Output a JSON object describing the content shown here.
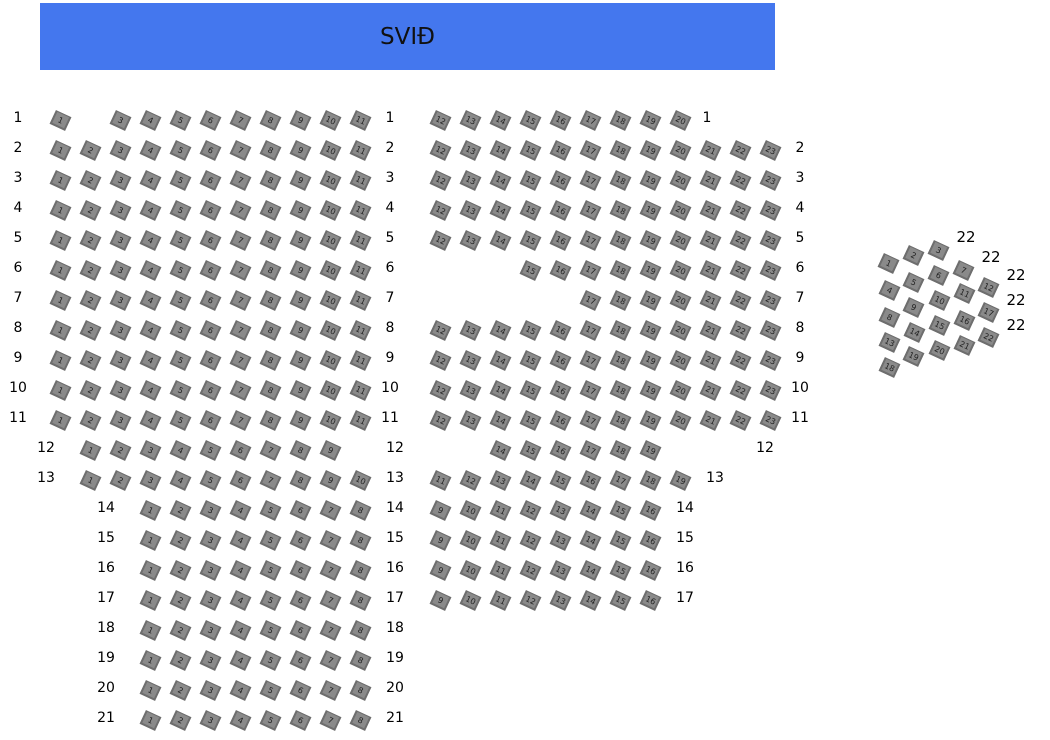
{
  "stage": {
    "label": "SVIÐ"
  },
  "left_section": {
    "rows": [
      {
        "label": "1",
        "seats": [
          1,
          3,
          4,
          5,
          6,
          7,
          8,
          9,
          10,
          11
        ]
      },
      {
        "label": "2",
        "seats": [
          1,
          2,
          3,
          4,
          5,
          6,
          7,
          8,
          9,
          10,
          11
        ]
      },
      {
        "label": "3",
        "seats": [
          1,
          2,
          3,
          4,
          5,
          6,
          7,
          8,
          9,
          10,
          11
        ]
      },
      {
        "label": "4",
        "seats": [
          1,
          2,
          3,
          4,
          5,
          6,
          7,
          8,
          9,
          10,
          11
        ]
      },
      {
        "label": "5",
        "seats": [
          1,
          2,
          3,
          4,
          5,
          6,
          7,
          8,
          9,
          10,
          11
        ]
      },
      {
        "label": "6",
        "seats": [
          1,
          2,
          3,
          4,
          5,
          6,
          7,
          8,
          9,
          10,
          11
        ]
      },
      {
        "label": "7",
        "seats": [
          1,
          2,
          3,
          4,
          5,
          6,
          7,
          8,
          9,
          10,
          11
        ]
      },
      {
        "label": "8",
        "seats": [
          1,
          2,
          3,
          4,
          5,
          6,
          7,
          8,
          9,
          10,
          11
        ]
      },
      {
        "label": "9",
        "seats": [
          1,
          2,
          3,
          4,
          5,
          6,
          7,
          8,
          9,
          10,
          11
        ]
      },
      {
        "label": "10",
        "seats": [
          1,
          2,
          3,
          4,
          5,
          6,
          7,
          8,
          9,
          10,
          11
        ]
      },
      {
        "label": "11",
        "seats": [
          1,
          2,
          3,
          4,
          5,
          6,
          7,
          8,
          9,
          10,
          11
        ]
      },
      {
        "label": "12",
        "seats": [
          1,
          2,
          3,
          4,
          5,
          6,
          7,
          8,
          9
        ]
      },
      {
        "label": "13",
        "seats": [
          1,
          2,
          3,
          4,
          5,
          6,
          7,
          8,
          9,
          10
        ]
      },
      {
        "label": "14",
        "seats": [
          1,
          2,
          3,
          4,
          5,
          6,
          7,
          8
        ]
      },
      {
        "label": "15",
        "seats": [
          1,
          2,
          3,
          4,
          5,
          6,
          7,
          8
        ]
      },
      {
        "label": "16",
        "seats": [
          1,
          2,
          3,
          4,
          5,
          6,
          7,
          8
        ]
      },
      {
        "label": "17",
        "seats": [
          1,
          2,
          3,
          4,
          5,
          6,
          7,
          8
        ]
      },
      {
        "label": "18",
        "seats": [
          1,
          2,
          3,
          4,
          5,
          6,
          7,
          8
        ]
      },
      {
        "label": "19",
        "seats": [
          1,
          2,
          3,
          4,
          5,
          6,
          7,
          8
        ]
      },
      {
        "label": "20",
        "seats": [
          1,
          2,
          3,
          4,
          5,
          6,
          7,
          8
        ]
      },
      {
        "label": "21",
        "seats": [
          1,
          2,
          3,
          4,
          5,
          6,
          7,
          8
        ]
      }
    ]
  },
  "right_section": {
    "rows": [
      {
        "label": "1",
        "seats": [
          12,
          13,
          14,
          15,
          16,
          17,
          18,
          19,
          20
        ]
      },
      {
        "label": "2",
        "seats": [
          12,
          13,
          14,
          15,
          16,
          17,
          18,
          19,
          20,
          21,
          22,
          23
        ]
      },
      {
        "label": "3",
        "seats": [
          12,
          13,
          14,
          15,
          16,
          17,
          18,
          19,
          20,
          21,
          22,
          23
        ]
      },
      {
        "label": "4",
        "seats": [
          12,
          13,
          14,
          15,
          16,
          17,
          18,
          19,
          20,
          21,
          22,
          23
        ]
      },
      {
        "label": "5",
        "seats": [
          12,
          13,
          14,
          15,
          16,
          17,
          18,
          19,
          20,
          21,
          22,
          23
        ]
      },
      {
        "label": "6",
        "seats": [
          15,
          16,
          17,
          18,
          19,
          20,
          21,
          22,
          23
        ]
      },
      {
        "label": "7",
        "seats": [
          17,
          18,
          19,
          20,
          21,
          22,
          23
        ]
      },
      {
        "label": "8",
        "seats": [
          12,
          13,
          14,
          15,
          16,
          17,
          18,
          19,
          20,
          21,
          22,
          23
        ]
      },
      {
        "label": "9",
        "seats": [
          12,
          13,
          14,
          15,
          16,
          17,
          18,
          19,
          20,
          21,
          22,
          23
        ]
      },
      {
        "label": "10",
        "seats": [
          12,
          13,
          14,
          15,
          16,
          17,
          18,
          19,
          20,
          21,
          22,
          23
        ]
      },
      {
        "label": "11",
        "seats": [
          12,
          13,
          14,
          15,
          16,
          17,
          18,
          19,
          20,
          21,
          22,
          23
        ]
      },
      {
        "label": "12",
        "seats": [
          14,
          15,
          16,
          17,
          18,
          19
        ]
      },
      {
        "label": "13",
        "seats": [
          11,
          12,
          13,
          14,
          15,
          16,
          17,
          18,
          19
        ]
      },
      {
        "label": "14",
        "seats": [
          9,
          10,
          11,
          12,
          13,
          14,
          15,
          16
        ]
      },
      {
        "label": "15",
        "seats": [
          9,
          10,
          11,
          12,
          13,
          14,
          15,
          16
        ]
      },
      {
        "label": "16",
        "seats": [
          9,
          10,
          11,
          12,
          13,
          14,
          15,
          16
        ]
      },
      {
        "label": "17",
        "seats": [
          9,
          10,
          11,
          12,
          13,
          14,
          15,
          16
        ]
      }
    ]
  },
  "side_section": {
    "row_labels": [
      "22",
      "22",
      "22",
      "22",
      "22"
    ],
    "seats": [
      1,
      2,
      3,
      4,
      5,
      6,
      7,
      8,
      9,
      10,
      11,
      12,
      13,
      14,
      15,
      16,
      17,
      18,
      19,
      20,
      21,
      22
    ]
  },
  "colors": {
    "stage": "#4477ee",
    "seat": "#8a8a8a",
    "seat_border": "#6e6e6e"
  }
}
